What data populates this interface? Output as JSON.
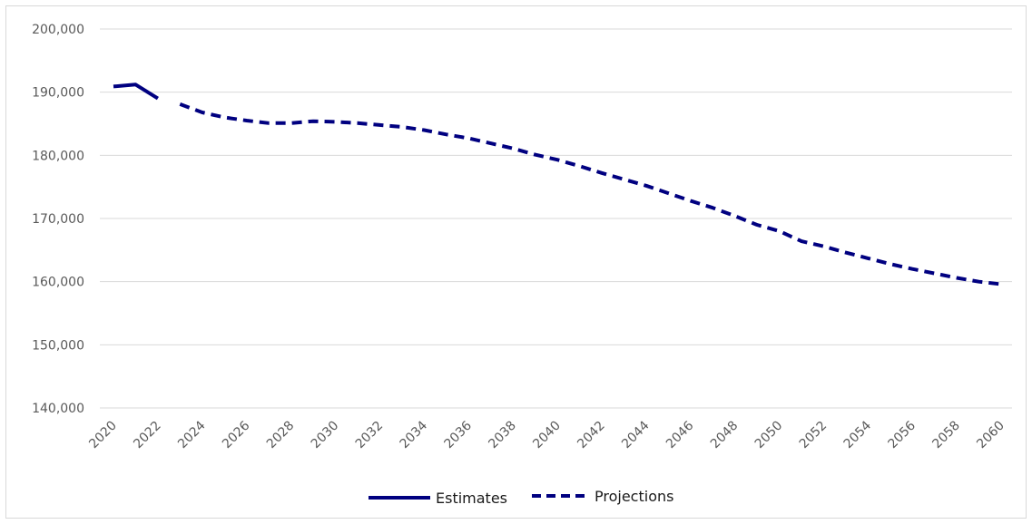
{
  "chart_data": {
    "type": "line",
    "title": "",
    "xlabel": "",
    "ylabel": "",
    "ylim": [
      140000,
      200000
    ],
    "y_ticks": [
      140000,
      150000,
      160000,
      170000,
      180000,
      190000,
      200000
    ],
    "y_tick_labels": [
      "140,000",
      "150,000",
      "160,000",
      "170,000",
      "180,000",
      "190,000",
      "200,000"
    ],
    "x_range": [
      2020,
      2060
    ],
    "x_ticks": [
      2020,
      2022,
      2024,
      2026,
      2028,
      2030,
      2032,
      2034,
      2036,
      2038,
      2040,
      2042,
      2044,
      2046,
      2048,
      2050,
      2052,
      2054,
      2056,
      2058,
      2060
    ],
    "x_tick_labels": [
      "2020",
      "2022",
      "2024",
      "2026",
      "2028",
      "2030",
      "2032",
      "2034",
      "2036",
      "2038",
      "2040",
      "2042",
      "2044",
      "2046",
      "2048",
      "2050",
      "2052",
      "2054",
      "2056",
      "2058",
      "2060"
    ],
    "grid": "horizontal",
    "legend_position": "bottom",
    "colors": {
      "series": "#000080",
      "grid": "#d9d9d9",
      "axis_text": "#595959"
    },
    "series": [
      {
        "name": "Estimates",
        "style": "solid",
        "x": [
          2020,
          2021,
          2022
        ],
        "y": [
          190900,
          191200,
          189000
        ]
      },
      {
        "name": "Projections",
        "style": "dashed",
        "x": [
          2023,
          2024,
          2025,
          2026,
          2027,
          2028,
          2029,
          2030,
          2031,
          2032,
          2033,
          2034,
          2035,
          2036,
          2037,
          2038,
          2039,
          2040,
          2041,
          2042,
          2043,
          2044,
          2045,
          2046,
          2047,
          2048,
          2049,
          2050,
          2051,
          2052,
          2053,
          2054,
          2055,
          2056,
          2057,
          2058,
          2059,
          2060
        ],
        "y": [
          188100,
          186800,
          186000,
          185500,
          185100,
          185100,
          185400,
          185300,
          185100,
          184800,
          184500,
          184000,
          183300,
          182700,
          181900,
          181100,
          180100,
          179300,
          178300,
          177200,
          176200,
          175200,
          174000,
          172800,
          171700,
          170400,
          169000,
          168000,
          166400,
          165600,
          164600,
          163700,
          162800,
          162000,
          161300,
          160600,
          160000,
          159600
        ]
      }
    ]
  }
}
